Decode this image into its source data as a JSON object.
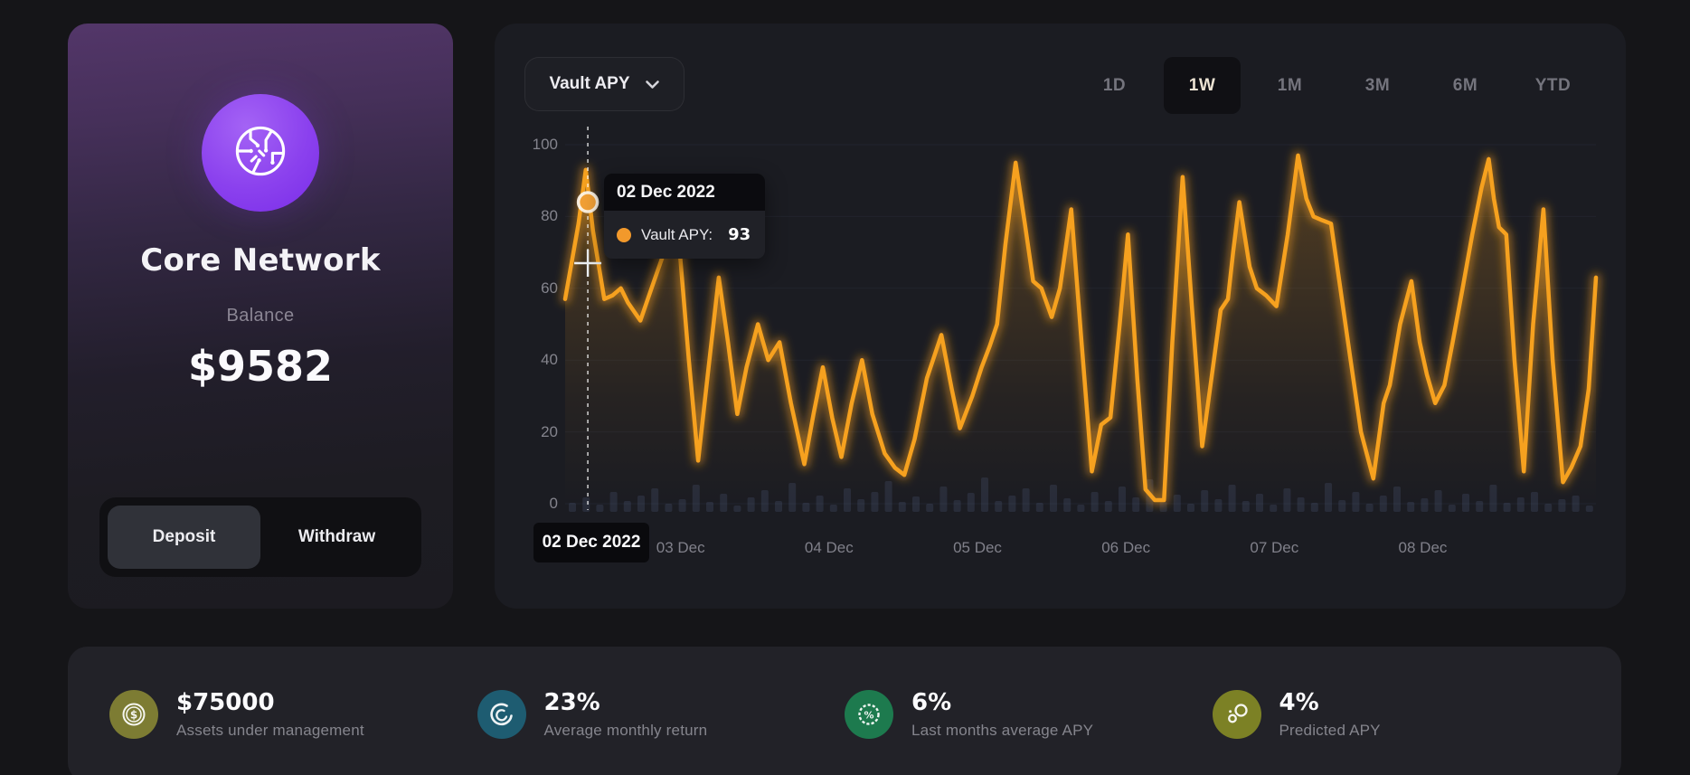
{
  "vault_card": {
    "name": "Core Network",
    "balance_label": "Balance",
    "balance_value": "$9582",
    "deposit_label": "Deposit",
    "withdraw_label": "Withdraw",
    "active_action": "Deposit"
  },
  "chart_panel": {
    "metric_selector_label": "Vault APY",
    "ranges": [
      {
        "label": "1D",
        "active": false
      },
      {
        "label": "1W",
        "active": true
      },
      {
        "label": "1M",
        "active": false
      },
      {
        "label": "3M",
        "active": false
      },
      {
        "label": "6M",
        "active": false
      },
      {
        "label": "YTD",
        "active": false
      }
    ],
    "tooltip": {
      "date": "02 Dec 2022",
      "series_label": "Vault APY:",
      "value": "93"
    },
    "hover_badge": "02 Dec 2022"
  },
  "chart_data": {
    "type": "line",
    "title": "Vault APY over 1 week",
    "series_name": "Vault APY",
    "line_color": "#f6a11f",
    "ylim": [
      0,
      100
    ],
    "yticks": [
      0,
      20,
      40,
      60,
      80,
      100
    ],
    "grid": "horizontal-faint",
    "legend_position": "tooltip-only",
    "xticks": [
      {
        "label": "03 Dec",
        "t": 0.112
      },
      {
        "label": "04 Dec",
        "t": 0.256
      },
      {
        "label": "05 Dec",
        "t": 0.4
      },
      {
        "label": "06 Dec",
        "t": 0.544
      },
      {
        "label": "07 Dec",
        "t": 0.688
      },
      {
        "label": "08 Dec",
        "t": 0.832
      }
    ],
    "hover": {
      "t": 0.022,
      "date": "02 Dec 2022",
      "value": 93,
      "marker_value": 84,
      "crosshair_value": 67
    },
    "points": [
      [
        0.0,
        57
      ],
      [
        0.013,
        78
      ],
      [
        0.02,
        93
      ],
      [
        0.027,
        76
      ],
      [
        0.038,
        57
      ],
      [
        0.046,
        58
      ],
      [
        0.054,
        60
      ],
      [
        0.061,
        56
      ],
      [
        0.073,
        51
      ],
      [
        0.085,
        61
      ],
      [
        0.096,
        70
      ],
      [
        0.105,
        74
      ],
      [
        0.111,
        71
      ],
      [
        0.12,
        40
      ],
      [
        0.129,
        12
      ],
      [
        0.138,
        35
      ],
      [
        0.149,
        63
      ],
      [
        0.158,
        45
      ],
      [
        0.167,
        25
      ],
      [
        0.176,
        38
      ],
      [
        0.187,
        50
      ],
      [
        0.197,
        40
      ],
      [
        0.208,
        45
      ],
      [
        0.219,
        28
      ],
      [
        0.232,
        11
      ],
      [
        0.241,
        25
      ],
      [
        0.25,
        38
      ],
      [
        0.259,
        24
      ],
      [
        0.268,
        13
      ],
      [
        0.278,
        28
      ],
      [
        0.288,
        40
      ],
      [
        0.298,
        25
      ],
      [
        0.31,
        14
      ],
      [
        0.32,
        10
      ],
      [
        0.329,
        8
      ],
      [
        0.339,
        18
      ],
      [
        0.351,
        35
      ],
      [
        0.365,
        47
      ],
      [
        0.375,
        32
      ],
      [
        0.383,
        21
      ],
      [
        0.395,
        30
      ],
      [
        0.404,
        38
      ],
      [
        0.412,
        44
      ],
      [
        0.419,
        50
      ],
      [
        0.427,
        72
      ],
      [
        0.437,
        95
      ],
      [
        0.446,
        78
      ],
      [
        0.454,
        62
      ],
      [
        0.462,
        60
      ],
      [
        0.472,
        52
      ],
      [
        0.48,
        60
      ],
      [
        0.491,
        82
      ],
      [
        0.501,
        45
      ],
      [
        0.511,
        9
      ],
      [
        0.52,
        22
      ],
      [
        0.529,
        24
      ],
      [
        0.538,
        50
      ],
      [
        0.546,
        75
      ],
      [
        0.555,
        35
      ],
      [
        0.563,
        4
      ],
      [
        0.572,
        1
      ],
      [
        0.581,
        1
      ],
      [
        0.589,
        45
      ],
      [
        0.599,
        91
      ],
      [
        0.608,
        55
      ],
      [
        0.618,
        16
      ],
      [
        0.627,
        35
      ],
      [
        0.636,
        54
      ],
      [
        0.643,
        57
      ],
      [
        0.648,
        70
      ],
      [
        0.654,
        84
      ],
      [
        0.664,
        66
      ],
      [
        0.671,
        60
      ],
      [
        0.68,
        58
      ],
      [
        0.69,
        55
      ],
      [
        0.701,
        75
      ],
      [
        0.711,
        97
      ],
      [
        0.719,
        85
      ],
      [
        0.726,
        80
      ],
      [
        0.734,
        79
      ],
      [
        0.743,
        78
      ],
      [
        0.752,
        60
      ],
      [
        0.761,
        42
      ],
      [
        0.772,
        20
      ],
      [
        0.784,
        7
      ],
      [
        0.794,
        28
      ],
      [
        0.8,
        33
      ],
      [
        0.81,
        50
      ],
      [
        0.821,
        62
      ],
      [
        0.829,
        45
      ],
      [
        0.836,
        36
      ],
      [
        0.844,
        28
      ],
      [
        0.853,
        33
      ],
      [
        0.861,
        45
      ],
      [
        0.87,
        59
      ],
      [
        0.88,
        75
      ],
      [
        0.889,
        88
      ],
      [
        0.896,
        96
      ],
      [
        0.901,
        85
      ],
      [
        0.906,
        77
      ],
      [
        0.913,
        75
      ],
      [
        0.921,
        40
      ],
      [
        0.93,
        9
      ],
      [
        0.939,
        50
      ],
      [
        0.949,
        82
      ],
      [
        0.958,
        40
      ],
      [
        0.968,
        6
      ],
      [
        0.976,
        10
      ],
      [
        0.985,
        16
      ],
      [
        0.993,
        32
      ],
      [
        1.0,
        63
      ]
    ],
    "volume_bars": [
      10,
      16,
      8,
      22,
      12,
      18,
      26,
      9,
      14,
      30,
      11,
      20,
      7,
      16,
      24,
      12,
      32,
      10,
      18,
      8,
      26,
      14,
      22,
      34,
      11,
      17,
      9,
      28,
      13,
      21,
      38,
      12,
      18,
      26,
      10,
      30,
      15,
      8,
      22,
      12,
      28,
      16,
      36,
      11,
      19,
      9,
      24,
      14,
      30,
      12,
      20,
      8,
      26,
      16,
      10,
      32,
      13,
      22,
      9,
      18,
      28,
      11,
      15,
      24,
      8,
      20,
      12,
      30,
      10,
      16,
      22,
      9,
      14,
      18,
      7
    ]
  },
  "stats": [
    {
      "id": "aum",
      "value": "$75000",
      "label": "Assets under management",
      "icon": "dollar-coin-icon",
      "color": "#7d7c33"
    },
    {
      "id": "avg-monthly-return",
      "value": "23%",
      "label": "Average monthly return",
      "icon": "crescent-return-icon",
      "color": "#1e5c71"
    },
    {
      "id": "last-months-avg-apy",
      "value": "6%",
      "label": "Last months average APY",
      "icon": "percent-badge-icon",
      "color": "#1d7a4e"
    },
    {
      "id": "predicted-apy",
      "value": "4%",
      "label": "Predicted APY",
      "icon": "bubbles-icon",
      "color": "#7c8125"
    }
  ]
}
